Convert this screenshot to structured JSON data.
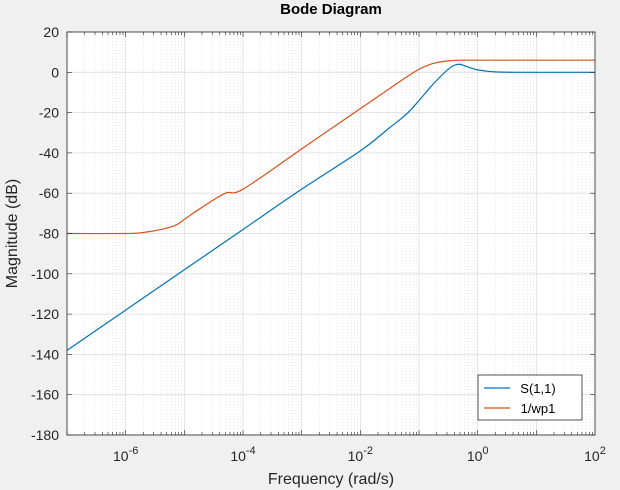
{
  "chart_data": {
    "type": "line",
    "title": "Bode Diagram",
    "xlabel": "Frequency  (rad/s)",
    "ylabel": "Magnitude (dB)",
    "x_scale": "log",
    "xlim": [
      1e-07,
      100
    ],
    "ylim": [
      -180,
      20
    ],
    "x_ticks": [
      {
        "value": 1e-06,
        "base": "10",
        "exp": "-6"
      },
      {
        "value": 0.0001,
        "base": "10",
        "exp": "-4"
      },
      {
        "value": 0.01,
        "base": "10",
        "exp": "-2"
      },
      {
        "value": 1,
        "base": "10",
        "exp": "0"
      },
      {
        "value": 100,
        "base": "10",
        "exp": "2"
      }
    ],
    "y_ticks": [
      20,
      0,
      -20,
      -40,
      -60,
      -80,
      -100,
      -120,
      -140,
      -160,
      -180
    ],
    "grid": true,
    "legend_position": "bottom-right",
    "series": [
      {
        "name": "S(1,1)",
        "color": "#0072BD",
        "x": [
          1e-07,
          1e-06,
          1e-05,
          0.0001,
          0.001,
          0.01,
          0.03,
          0.06,
          0.1,
          0.15,
          0.2,
          0.3,
          0.4,
          0.5,
          0.6,
          0.8,
          1,
          1.5,
          2,
          3,
          5,
          10,
          100
        ],
        "y": [
          -138,
          -118,
          -98,
          -78,
          -58,
          -39,
          -28,
          -21,
          -14,
          -8,
          -4,
          1,
          3.5,
          4,
          3.2,
          2,
          1.2,
          0.5,
          0.2,
          0.05,
          0,
          0,
          0
        ]
      },
      {
        "name": "1/wp1",
        "color": "#D95319",
        "x": [
          1e-07,
          1e-06,
          2e-06,
          4e-06,
          7e-06,
          1e-05,
          2e-05,
          5e-05,
          0.0001,
          0.001,
          0.01,
          0.03,
          0.06,
          0.1,
          0.15,
          0.2,
          0.3,
          0.5,
          1,
          10,
          100
        ],
        "y": [
          -80,
          -80,
          -79.5,
          -78,
          -76,
          -73,
          -67,
          -60,
          -58,
          -38,
          -18,
          -8.5,
          -2.5,
          1.5,
          3.8,
          4.8,
          5.6,
          6,
          6,
          6,
          6
        ]
      }
    ]
  }
}
